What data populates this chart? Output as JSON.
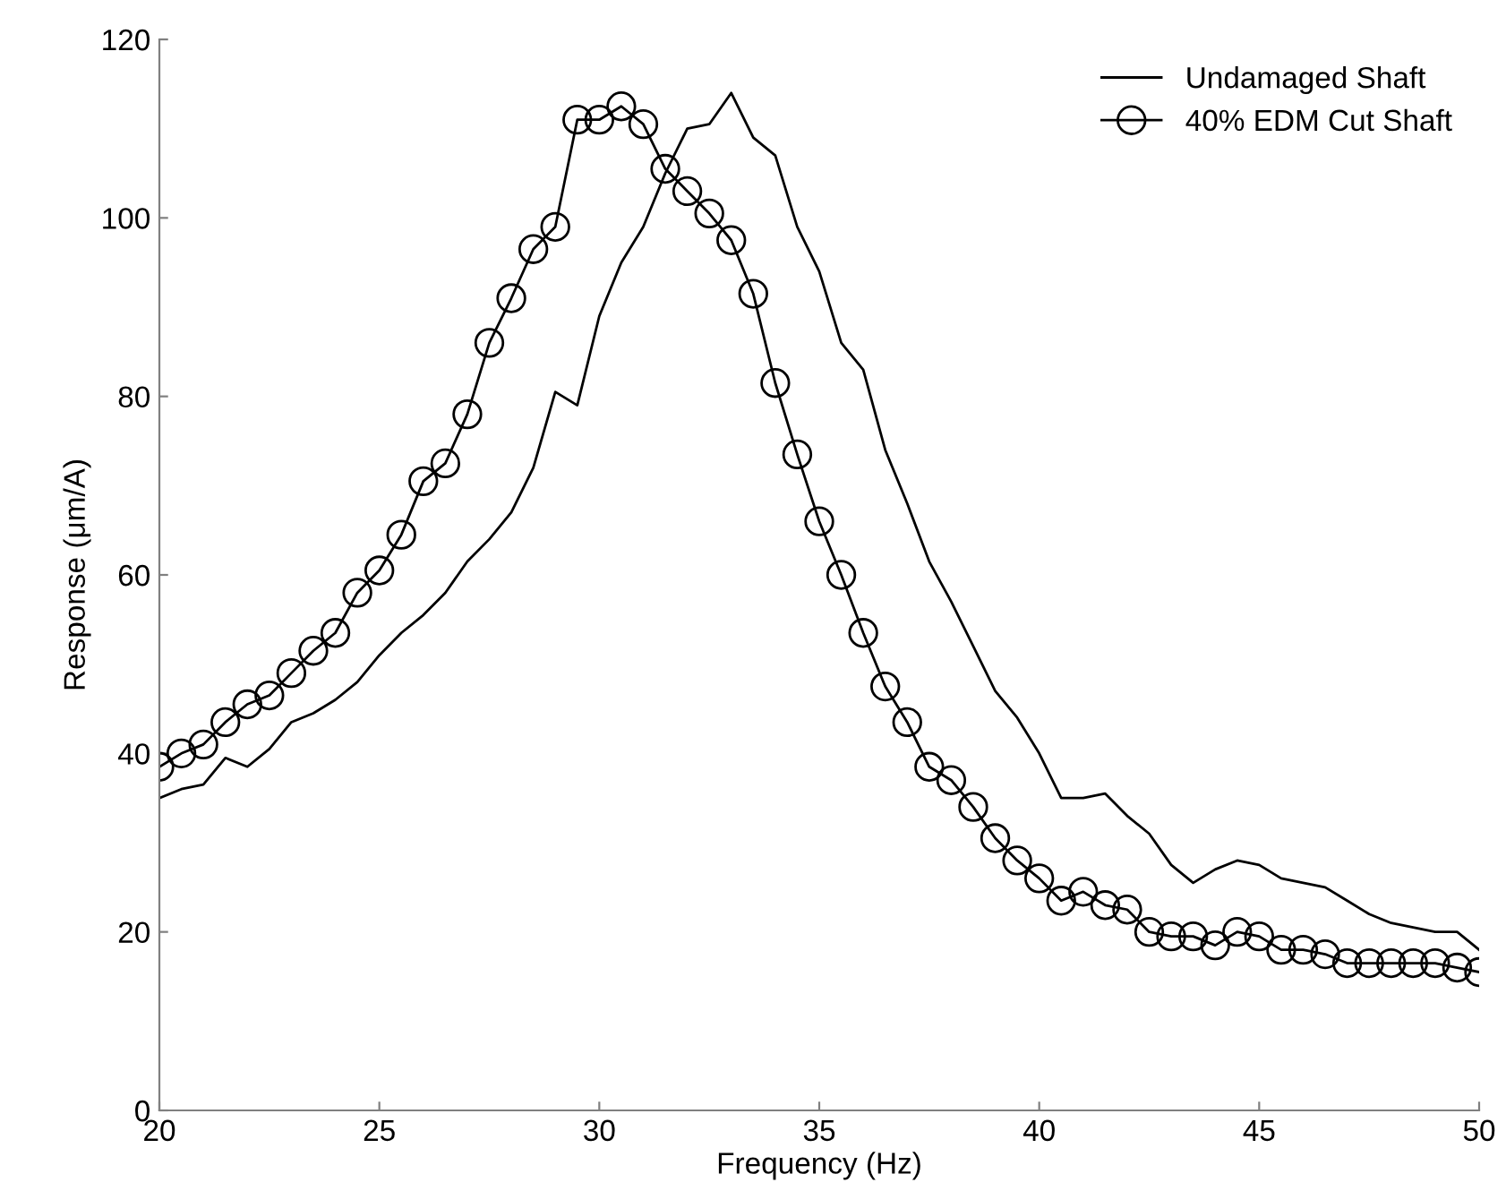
{
  "chart_data": {
    "type": "line",
    "xlabel": "Frequency (Hz)",
    "ylabel": "Response (μm/A)",
    "x": [
      20,
      20.5,
      21,
      21.5,
      22,
      22.5,
      23,
      23.5,
      24,
      24.5,
      25,
      25.5,
      26,
      26.5,
      27,
      27.5,
      28,
      28.5,
      29,
      29.5,
      30,
      30.5,
      31,
      31.5,
      32,
      32.5,
      33,
      33.5,
      34,
      34.5,
      35,
      35.5,
      36,
      36.5,
      37,
      37.5,
      38,
      38.5,
      39,
      39.5,
      40,
      40.5,
      41,
      41.5,
      42,
      42.5,
      43,
      43.5,
      44,
      44.5,
      45,
      45.5,
      46,
      46.5,
      47,
      47.5,
      48,
      48.5,
      49,
      49.5,
      50
    ],
    "series": [
      {
        "name": "Undamaged Shaft",
        "color": "#000000",
        "marker": "none",
        "values": [
          35,
          36,
          36.5,
          39.5,
          38.5,
          40.5,
          43.5,
          44.5,
          46,
          48,
          51,
          53.5,
          55.5,
          58,
          61.5,
          64,
          67,
          72,
          80.5,
          79,
          89,
          95,
          99,
          105,
          110,
          110.5,
          114,
          109,
          107,
          99,
          94,
          86,
          83,
          74,
          68,
          61.5,
          57,
          52,
          47,
          44,
          40,
          35,
          35,
          35.5,
          33,
          31,
          27.5,
          25.5,
          27,
          28,
          27.5,
          26,
          25.5,
          25,
          23.5,
          22,
          21,
          20.5,
          20,
          20,
          18
        ]
      },
      {
        "name": "40% EDM Cut Shaft",
        "color": "#000000",
        "marker": "circle",
        "values": [
          38.5,
          40,
          41,
          43.5,
          45.5,
          46.5,
          49,
          51.5,
          53.5,
          58,
          60.5,
          64.5,
          70.5,
          72.5,
          78,
          86,
          91,
          96.5,
          99,
          111,
          111,
          112.5,
          110.5,
          105.5,
          103,
          100.5,
          97.5,
          91.5,
          81.5,
          73.5,
          66,
          60,
          53.5,
          47.5,
          43.5,
          38.5,
          37,
          34,
          30.5,
          28,
          26,
          23.5,
          24.5,
          23,
          22.5,
          20,
          19.5,
          19.5,
          18.5,
          20,
          19.5,
          18,
          18,
          17.5,
          16.5,
          16.5,
          16.5,
          16.5,
          16.5,
          16,
          15.5
        ]
      }
    ],
    "xlim": [
      20,
      50
    ],
    "ylim": [
      0,
      120
    ],
    "xticks": [
      20,
      25,
      30,
      35,
      40,
      45,
      50
    ],
    "yticks": [
      0,
      20,
      40,
      60,
      80,
      100,
      120
    ],
    "grid": false,
    "legend": "top right",
    "line_style": "solid"
  }
}
